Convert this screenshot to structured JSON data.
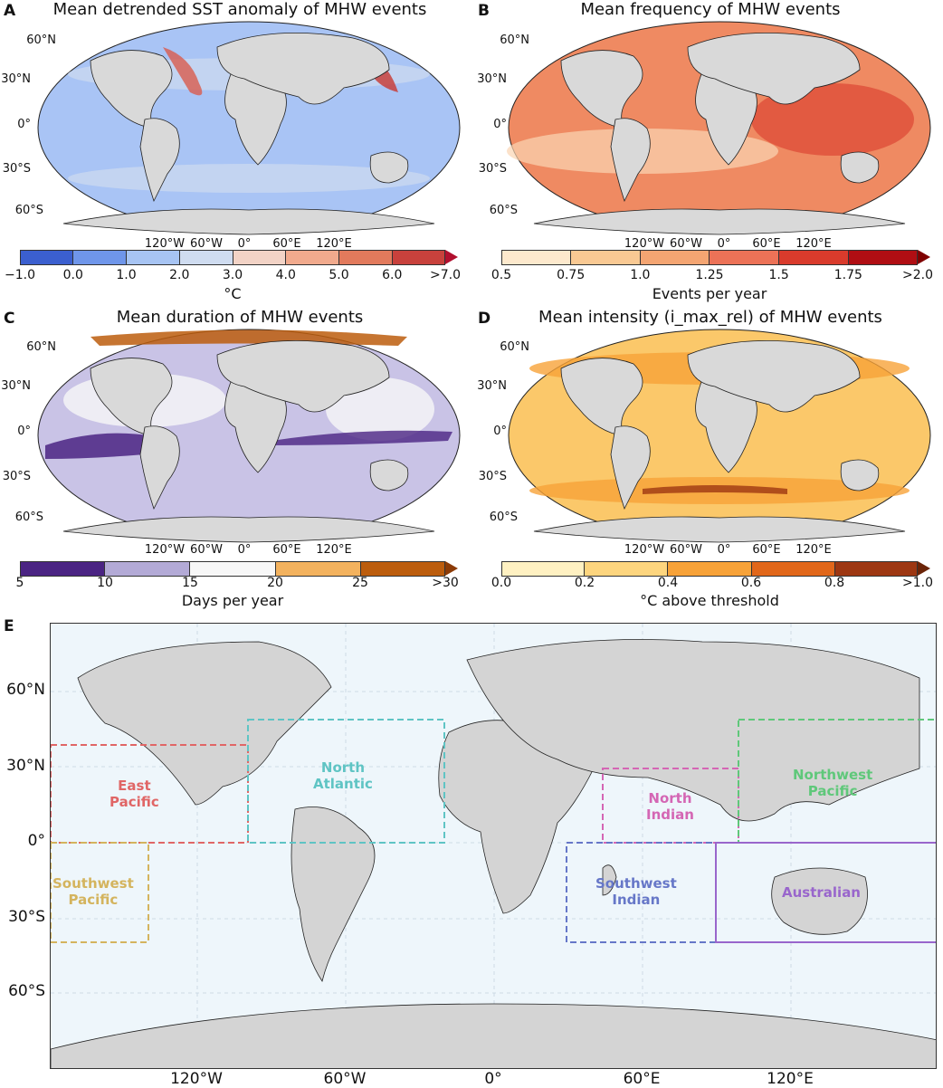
{
  "panels": [
    {
      "letter": "A",
      "title": "Mean detrended SST anomaly of MHW events",
      "cbar_label": "°C",
      "ticks": [
        "−1.0",
        "0.0",
        "1.0",
        "2.0",
        "3.0",
        "4.0",
        "5.0",
        "6.0",
        ">7.0"
      ],
      "colors": [
        "#3b5fcf",
        "#6f96ea",
        "#a7c4f3",
        "#cfdcf0",
        "#f2d3c6",
        "#f1aa8d",
        "#e27a5c",
        "#c8413c"
      ],
      "arrow_color": "#b10f2e",
      "ocean": "#a9c4f5"
    },
    {
      "letter": "B",
      "title": "Mean frequency of MHW events",
      "cbar_label": "Events per year",
      "ticks": [
        "0.5",
        "0.75",
        "1.0",
        "1.25",
        "1.5",
        "1.75",
        ">2.0"
      ],
      "colors": [
        "#fde9cd",
        "#f9c993",
        "#f4a572",
        "#ec7257",
        "#d93b2c",
        "#b00e13"
      ],
      "arrow_color": "#7f0000",
      "ocean": "#ef8a62"
    },
    {
      "letter": "C",
      "title": "Mean duration of MHW events",
      "cbar_label": "Days per year",
      "ticks": [
        "5",
        "10",
        "15",
        "20",
        "25",
        ">30"
      ],
      "colors": [
        "#4b2483",
        "#b3aad6",
        "#f7f7f7",
        "#f3b25e",
        "#bc5d0d"
      ],
      "arrow_color": "#8c3b06",
      "ocean": "#c9c3e6"
    },
    {
      "letter": "D",
      "title": "Mean intensity (i_max_rel) of MHW events",
      "cbar_label": "°C above threshold",
      "ticks": [
        "0.0",
        "0.2",
        "0.4",
        "0.6",
        "0.8",
        ">1.0"
      ],
      "colors": [
        "#fff1c2",
        "#fdd57e",
        "#f7a238",
        "#e1671a",
        "#9d3712"
      ],
      "arrow_color": "#6b2408",
      "ocean": "#fbc86a"
    }
  ],
  "small_map_lats": [
    "60°N",
    "30°N",
    "0°",
    "30°S",
    "60°S"
  ],
  "small_map_lons": [
    "120°W",
    "60°W",
    "0°",
    "60°E",
    "120°E"
  ],
  "panel_e": {
    "letter": "E",
    "lats": [
      "60°N",
      "30°N",
      "0°",
      "30°S",
      "60°S"
    ],
    "lons": [
      "120°W",
      "60°W",
      "0°",
      "60°E",
      "120°E"
    ],
    "regions": [
      {
        "name_line1": "East",
        "name_line2": "Pacific",
        "color": "#e06666"
      },
      {
        "name_line1": "North",
        "name_line2": "Atlantic",
        "color": "#5fc4c4"
      },
      {
        "name_line1": "Southwest",
        "name_line2": "Pacific",
        "color": "#d4b45e"
      },
      {
        "name_line1": "North",
        "name_line2": "Indian",
        "color": "#d466b4"
      },
      {
        "name_line1": "Southwest",
        "name_line2": "Indian",
        "color": "#6677c8"
      },
      {
        "name_line1": "Northwest",
        "name_line2": "Pacific",
        "color": "#5fc87a"
      },
      {
        "name_line1": "Australian",
        "name_line2": "",
        "color": "#9966cc"
      }
    ]
  }
}
